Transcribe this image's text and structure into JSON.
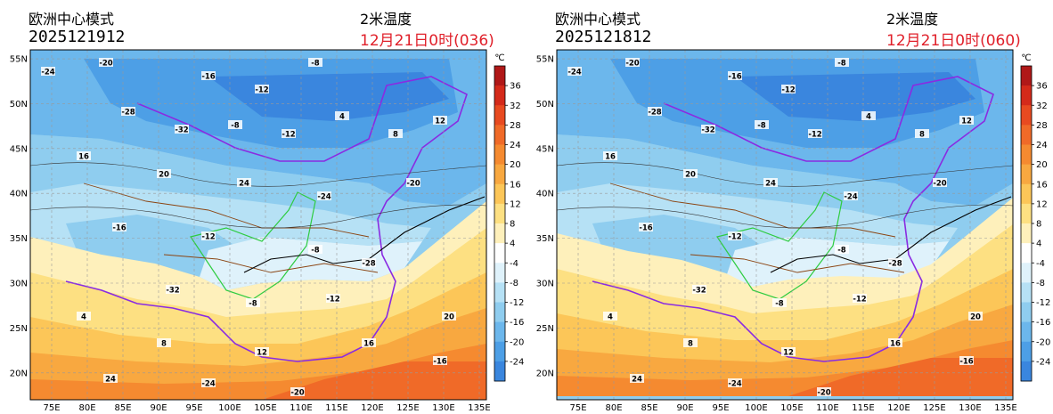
{
  "panels": [
    {
      "model": "欧洲中心模式",
      "init": "2025121912",
      "variable": "2米温度",
      "valid": "12月21日0时(036)"
    },
    {
      "model": "欧洲中心模式",
      "init": "2025121812",
      "variable": "2米温度",
      "valid": "12月21日0时(060)"
    }
  ],
  "map": {
    "lon_labels": [
      "75E",
      "80E",
      "85E",
      "90E",
      "95E",
      "100E",
      "105E",
      "110E",
      "115E",
      "120E",
      "125E",
      "130E",
      "135E"
    ],
    "lat_labels": [
      "55N",
      "50N",
      "45N",
      "40N",
      "35N",
      "30N",
      "25N",
      "20N"
    ],
    "lon_range": [
      72,
      136
    ],
    "lat_range": [
      17,
      56
    ]
  },
  "colorbar": {
    "unit": "℃",
    "ticks": [
      "36",
      "32",
      "28",
      "24",
      "20",
      "16",
      "12",
      "8",
      "4",
      "-4",
      "-8",
      "-12",
      "-16",
      "-20",
      "-24"
    ],
    "colors": [
      "#b01818",
      "#d42a1a",
      "#e84a20",
      "#f06a28",
      "#f58a30",
      "#f8a840",
      "#fcc658",
      "#fde082",
      "#fef0bb",
      "#ffffff",
      "#dff2fb",
      "#b6e1f5",
      "#8fcdef",
      "#6cb7ec",
      "#4d9fe6",
      "#3a86de"
    ]
  },
  "contour_labels": {
    "left": [
      "-24",
      "-20",
      "-16",
      "-12",
      "-8",
      "-28",
      "-32",
      "-8",
      "-12",
      "4",
      "8",
      "12",
      "16",
      "20",
      "24"
    ],
    "right": [
      "-24",
      "-20",
      "-16",
      "-12",
      "-8",
      "-28",
      "-32",
      "-8",
      "-12",
      "4",
      "8",
      "12",
      "16",
      "20",
      "24"
    ]
  }
}
